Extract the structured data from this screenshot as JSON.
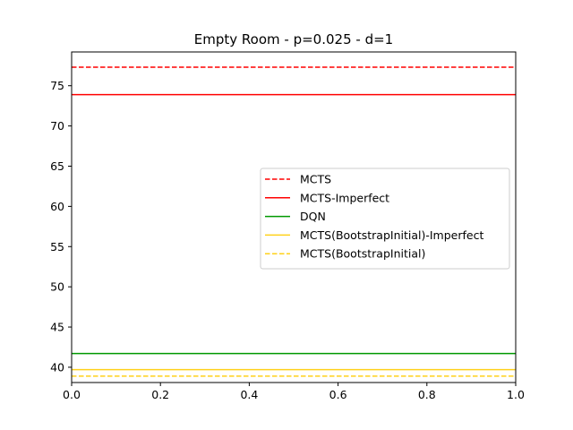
{
  "chart_data": {
    "type": "line",
    "title": "Empty Room - p=0.025 - d=1",
    "xlabel": "",
    "ylabel": "",
    "xlim": [
      0.0,
      1.0
    ],
    "ylim": [
      38.1,
      79.2
    ],
    "xticks": [
      "0.0",
      "0.2",
      "0.4",
      "0.6",
      "0.8",
      "1.0"
    ],
    "xtick_values": [
      0.0,
      0.2,
      0.4,
      0.6,
      0.8,
      1.0
    ],
    "yticks": [
      "40",
      "45",
      "50",
      "55",
      "60",
      "65",
      "70",
      "75"
    ],
    "ytick_values": [
      40,
      45,
      50,
      55,
      60,
      65,
      70,
      75
    ],
    "grid": false,
    "legend_position": "center-right",
    "series": [
      {
        "name": "MCTS",
        "value": 77.3,
        "color": "#ff0000",
        "dash": "dashed"
      },
      {
        "name": "MCTS-Imperfect",
        "value": 73.9,
        "color": "#ff0000",
        "dash": "solid"
      },
      {
        "name": "DQN",
        "value": 41.7,
        "color": "#009900",
        "dash": "solid"
      },
      {
        "name": "MCTS(BootstrapInitial)-Imperfect",
        "value": 39.7,
        "color": "#ffd11a",
        "dash": "solid"
      },
      {
        "name": "MCTS(BootstrapInitial)",
        "value": 38.9,
        "color": "#ffd11a",
        "dash": "dashed"
      }
    ]
  }
}
